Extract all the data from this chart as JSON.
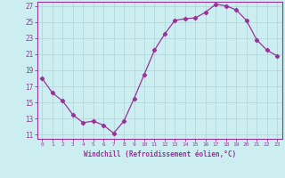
{
  "x": [
    0,
    1,
    2,
    3,
    4,
    5,
    6,
    7,
    8,
    9,
    10,
    11,
    12,
    13,
    14,
    15,
    16,
    17,
    18,
    19,
    20,
    21,
    22,
    23
  ],
  "y": [
    18.0,
    16.2,
    15.2,
    13.5,
    12.5,
    12.7,
    12.2,
    11.2,
    12.7,
    15.5,
    18.5,
    21.5,
    23.5,
    25.2,
    25.4,
    25.5,
    26.2,
    27.2,
    27.0,
    26.5,
    25.2,
    22.8,
    21.5,
    20.8
  ],
  "line_color": "#993399",
  "marker": "D",
  "marker_size": 2.2,
  "bg_color": "#cceef0",
  "grid_color": "#b0d8dc",
  "xlabel": "Windchill (Refroidissement éolien,°C)",
  "xlim": [
    -0.5,
    23.5
  ],
  "ylim": [
    10.5,
    27.5
  ],
  "yticks": [
    11,
    13,
    15,
    17,
    19,
    21,
    23,
    25,
    27
  ],
  "xticks": [
    0,
    1,
    2,
    3,
    4,
    5,
    6,
    7,
    8,
    9,
    10,
    11,
    12,
    13,
    14,
    15,
    16,
    17,
    18,
    19,
    20,
    21,
    22,
    23
  ],
  "tick_color": "#993399",
  "label_color": "#993399",
  "spine_color": "#993399"
}
